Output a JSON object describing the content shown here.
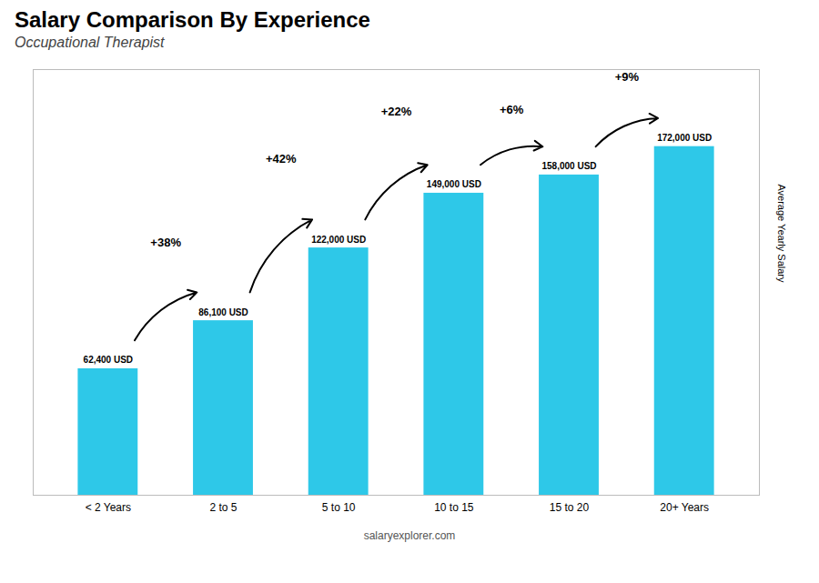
{
  "chart_data": {
    "type": "bar",
    "title": "Salary Comparison By Experience",
    "subtitle": "Occupational Therapist",
    "ylabel": "Average Yearly Salary",
    "caption": "salaryexplorer.com",
    "categories": [
      "< 2 Years",
      "2 to 5",
      "5 to 10",
      "10 to 15",
      "15 to 20",
      "20+ Years"
    ],
    "values": [
      62400,
      86100,
      122000,
      149000,
      158000,
      172000
    ],
    "value_labels": [
      "62,400 USD",
      "86,100 USD",
      "122,000 USD",
      "149,000 USD",
      "158,000 USD",
      "172,000 USD"
    ],
    "data_labels": true,
    "annotations": [
      "+38%",
      "+42%",
      "+22%",
      "+6%",
      "+9%"
    ],
    "color": "#2ec8e8",
    "ylim": [
      0,
      210000
    ],
    "tick_labels": "x",
    "grid": false
  }
}
